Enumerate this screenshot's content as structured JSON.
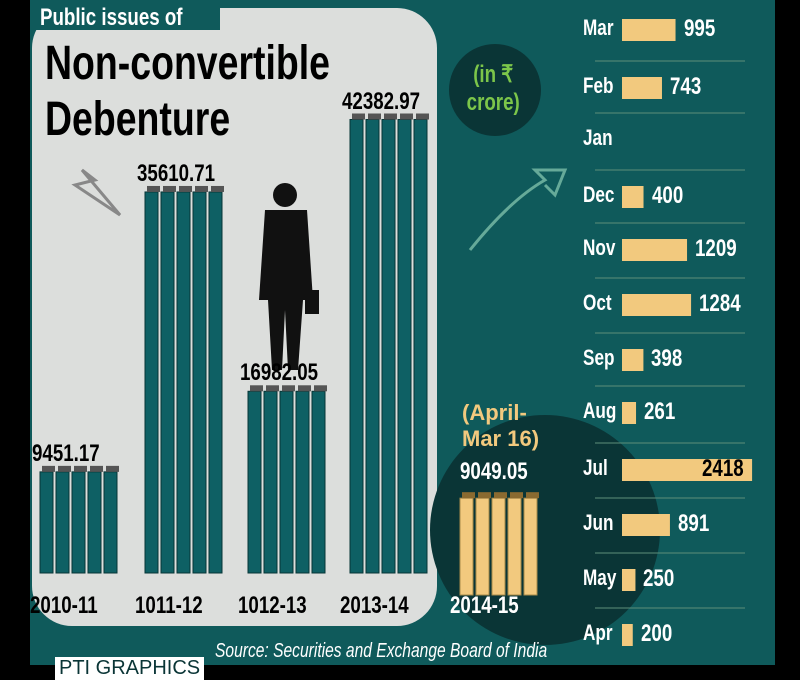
{
  "header": {
    "kicker": "Public issues of",
    "title_line1": "Non-convertible",
    "title_line2": "Debenture",
    "unit": "(in ₹ crore)"
  },
  "source": "Source: Securities and Exchange Board of India",
  "logo": "PTI GRAPHICS",
  "colors": {
    "panel": "#0f5a5b",
    "dark": "#0a3536",
    "light": "#dcdedc",
    "beige": "#f2c97e",
    "bar": "#0e6064"
  },
  "chart_data": [
    {
      "type": "bar",
      "title": "Public issues of Non-convertible Debenture",
      "ylabel": "(in ₹ crore)",
      "categories": [
        "2010-11",
        "1011-12",
        "1012-13",
        "2013-14",
        "2014-15"
      ],
      "values": [
        9451.17,
        35610.71,
        16982.05,
        42382.97,
        9049.05
      ],
      "value_labels": [
        "9451.17",
        "35610.71",
        "16982.05",
        "42382.97",
        "9049.05"
      ],
      "annotations": [
        "(April-Mar 16)"
      ]
    },
    {
      "type": "bar",
      "orientation": "horizontal",
      "categories": [
        "Mar",
        "Feb",
        "Jan",
        "Dec",
        "Nov",
        "Oct",
        "Sep",
        "Aug",
        "Jul",
        "Jun",
        "May",
        "Apr"
      ],
      "values": [
        995,
        743,
        null,
        400,
        1209,
        1284,
        398,
        261,
        2418,
        891,
        250,
        200
      ]
    }
  ]
}
